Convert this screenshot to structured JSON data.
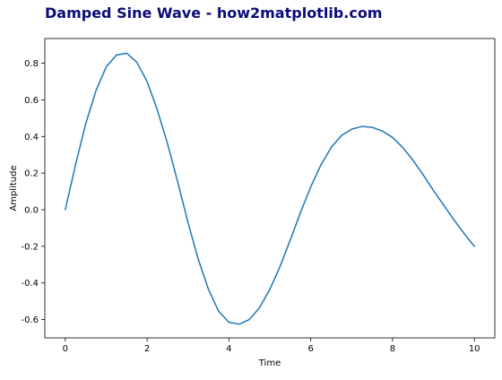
{
  "chart_data": {
    "type": "line",
    "title": "Damped Sine Wave - how2matplotlib.com",
    "xlabel": "Time",
    "ylabel": "Amplitude",
    "xlim": [
      -0.5,
      10.5
    ],
    "ylim": [
      -0.7,
      0.935
    ],
    "xticks": [
      0,
      2,
      4,
      6,
      8,
      10
    ],
    "xtick_labels": [
      "0",
      "2",
      "4",
      "6",
      "8",
      "10"
    ],
    "yticks": [
      -0.6,
      -0.4,
      -0.2,
      0.0,
      0.2,
      0.4,
      0.6,
      0.8
    ],
    "ytick_labels": [
      "-0.6",
      "-0.4",
      "-0.2",
      "0.0",
      "0.2",
      "0.4",
      "0.6",
      "0.8"
    ],
    "grid": false,
    "series": [
      {
        "color": "#1f77b4",
        "x": [
          0,
          0.25,
          0.5,
          0.75,
          1.0,
          1.25,
          1.5,
          1.75,
          2.0,
          2.25,
          2.5,
          2.75,
          3.0,
          3.25,
          3.5,
          3.75,
          4.0,
          4.25,
          4.5,
          4.75,
          5.0,
          5.25,
          5.5,
          5.75,
          6.0,
          6.25,
          6.5,
          6.75,
          7.0,
          7.25,
          7.5,
          7.75,
          8.0,
          8.25,
          8.5,
          8.75,
          9.0,
          9.25,
          9.5,
          9.75,
          10.0
        ],
        "y": [
          0.0,
          0.245,
          0.47,
          0.65,
          0.78,
          0.845,
          0.855,
          0.805,
          0.7,
          0.545,
          0.36,
          0.15,
          -0.07,
          -0.27,
          -0.435,
          -0.555,
          -0.615,
          -0.625,
          -0.6,
          -0.535,
          -0.435,
          -0.31,
          -0.165,
          -0.015,
          0.125,
          0.245,
          0.34,
          0.405,
          0.44,
          0.455,
          0.45,
          0.43,
          0.395,
          0.34,
          0.27,
          0.19,
          0.105,
          0.025,
          -0.055,
          -0.13,
          -0.2
        ]
      }
    ]
  }
}
